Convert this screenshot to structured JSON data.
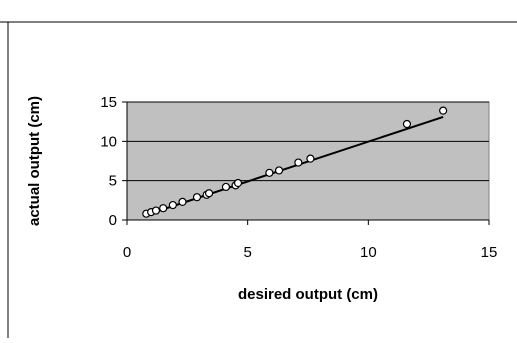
{
  "chart_data": {
    "type": "scatter",
    "xlabel": "desired output (cm)",
    "ylabel": "actual output (cm)",
    "xlim": [
      0,
      15
    ],
    "ylim": [
      0,
      15
    ],
    "xticks": [
      "0",
      "5",
      "10",
      "15"
    ],
    "yticks": [
      "0",
      "5",
      "10",
      "15"
    ],
    "grid": "horizontal",
    "plot_background": "#c0c0c0",
    "points": [
      {
        "x": 0.8,
        "y": 0.8
      },
      {
        "x": 1.0,
        "y": 1.0
      },
      {
        "x": 1.2,
        "y": 1.2
      },
      {
        "x": 1.5,
        "y": 1.5
      },
      {
        "x": 1.9,
        "y": 1.9
      },
      {
        "x": 2.3,
        "y": 2.3
      },
      {
        "x": 2.9,
        "y": 2.9
      },
      {
        "x": 3.3,
        "y": 3.2
      },
      {
        "x": 3.4,
        "y": 3.4
      },
      {
        "x": 4.1,
        "y": 4.2
      },
      {
        "x": 4.5,
        "y": 4.4
      },
      {
        "x": 4.6,
        "y": 4.7
      },
      {
        "x": 5.9,
        "y": 6.0
      },
      {
        "x": 6.3,
        "y": 6.3
      },
      {
        "x": 7.1,
        "y": 7.3
      },
      {
        "x": 7.6,
        "y": 7.8
      },
      {
        "x": 11.6,
        "y": 12.2
      },
      {
        "x": 13.1,
        "y": 13.9
      }
    ],
    "trendline": {
      "x": [
        0.8,
        13.1
      ],
      "y": [
        0.65,
        13.1
      ]
    }
  }
}
